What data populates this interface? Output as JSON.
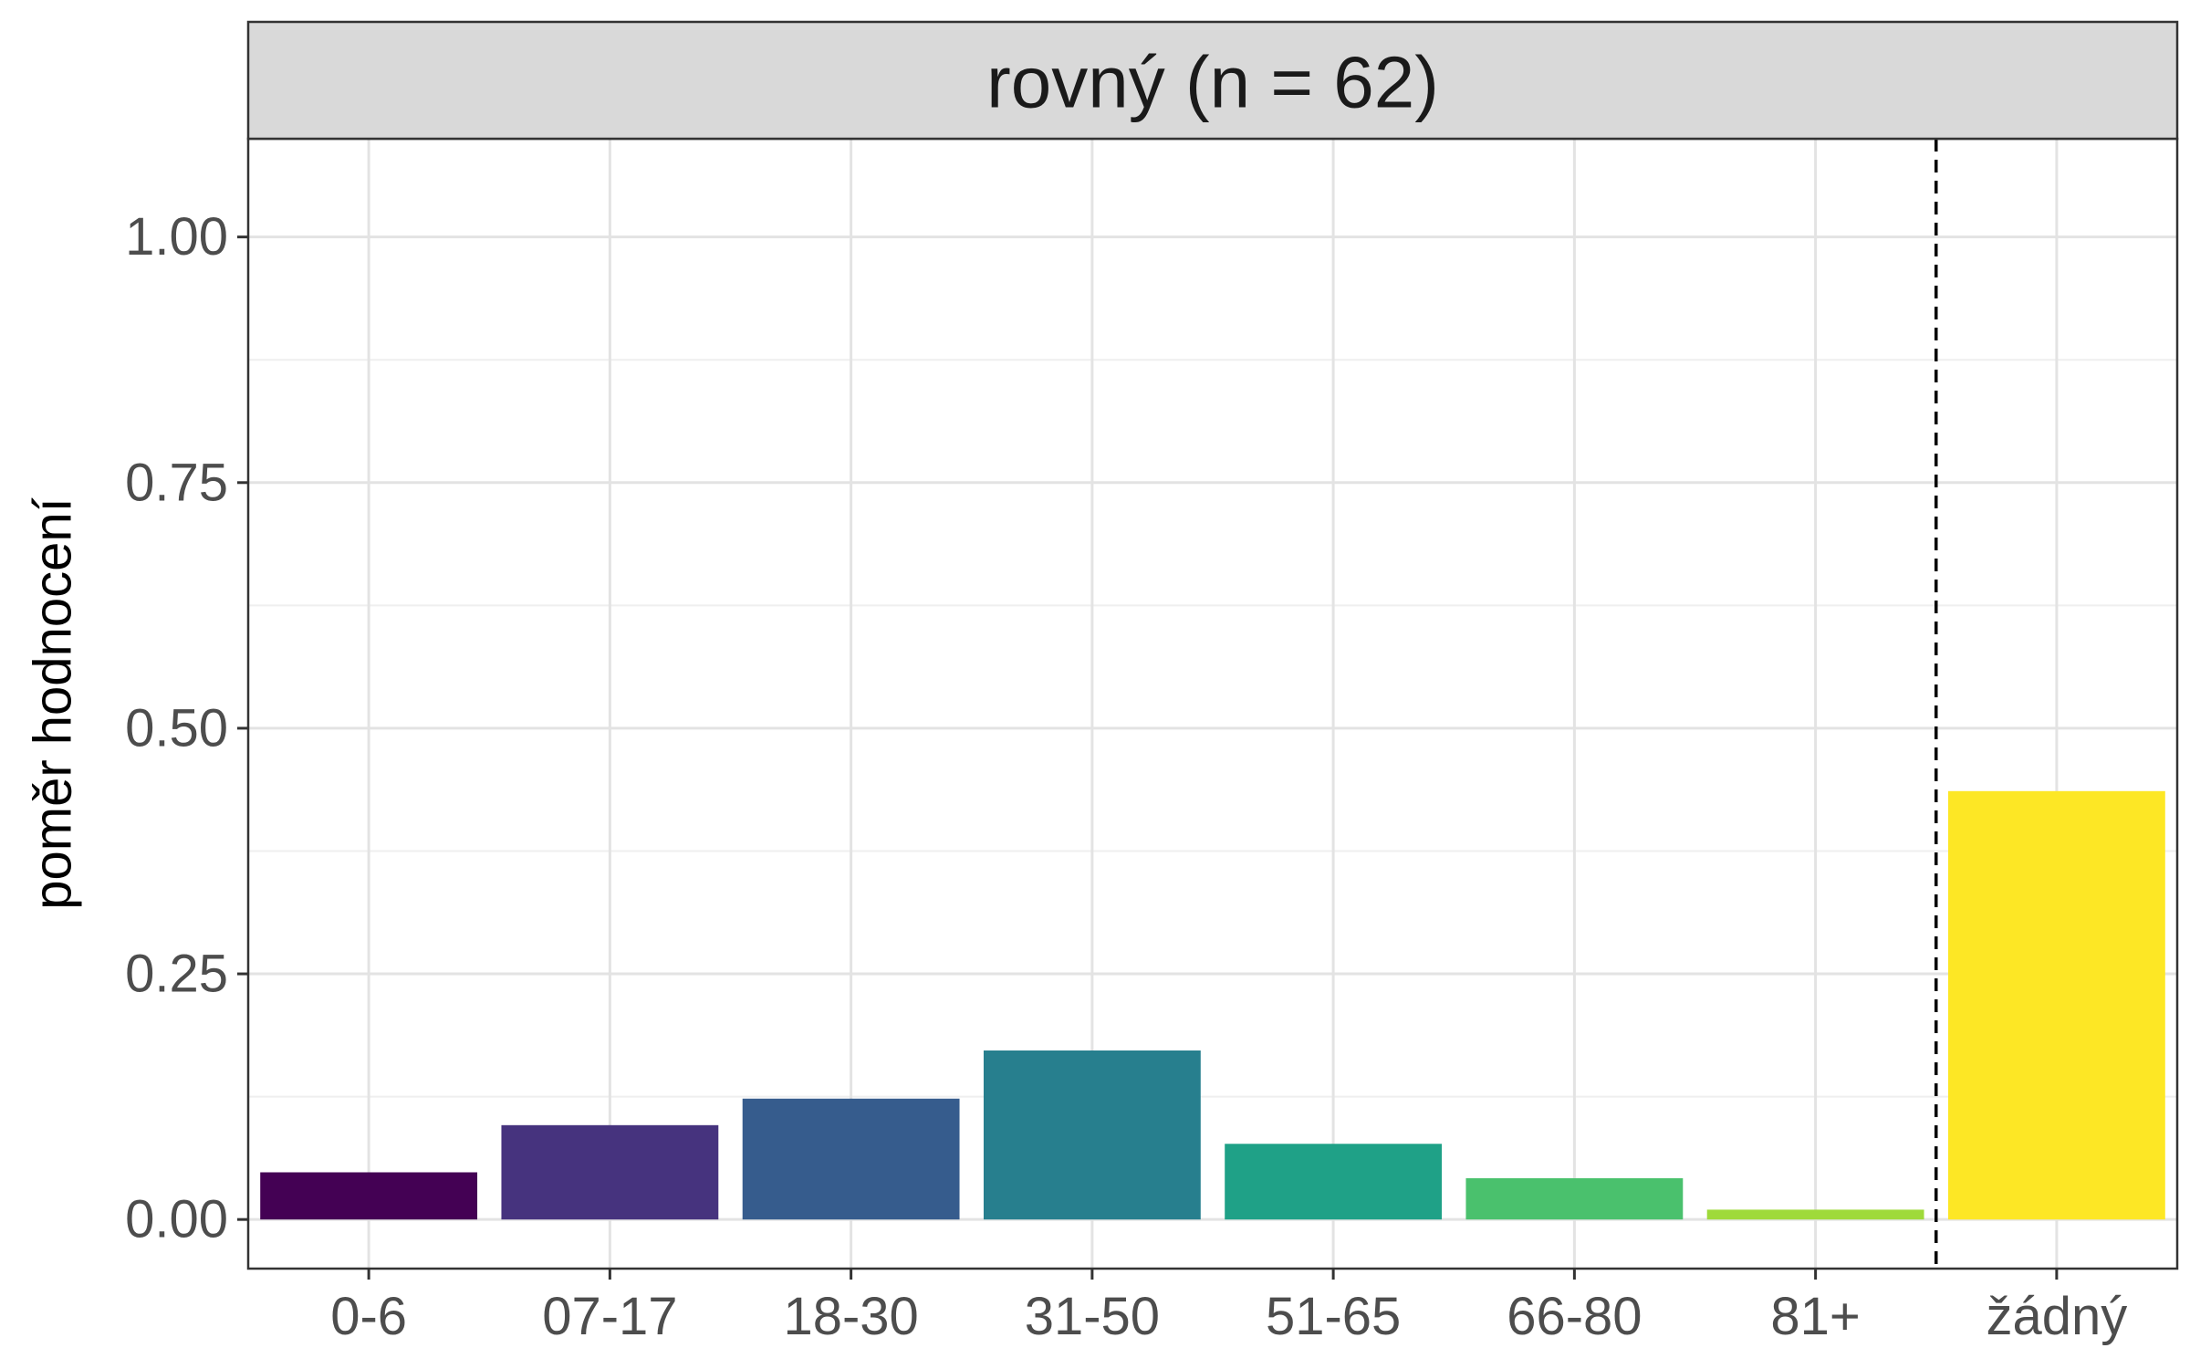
{
  "chart_data": {
    "type": "bar",
    "facet_title": "rovný (n = 62)",
    "xlabel": "",
    "ylabel": "poměr hodnocení",
    "categories": [
      "0-6",
      "07-17",
      "18-30",
      "31-50",
      "51-65",
      "66-80",
      "81+",
      "žádný"
    ],
    "values": [
      0.048,
      0.096,
      0.123,
      0.172,
      0.077,
      0.042,
      0.01,
      0.436
    ],
    "colors": [
      "#440154",
      "#46337E",
      "#365C8D",
      "#277F8E",
      "#1FA187",
      "#4AC16D",
      "#9FDA3A",
      "#FDE725"
    ],
    "ylim": [
      -0.05,
      1.1
    ],
    "yticks": [
      0.0,
      0.25,
      0.5,
      0.75,
      1.0
    ],
    "ytick_labels": [
      "0.00",
      "0.25",
      "0.50",
      "0.75",
      "1.00"
    ],
    "separator": {
      "between": [
        "81+",
        "žádný"
      ],
      "style": "dashed",
      "color": "#000000"
    },
    "grid": true,
    "legend": "none"
  }
}
